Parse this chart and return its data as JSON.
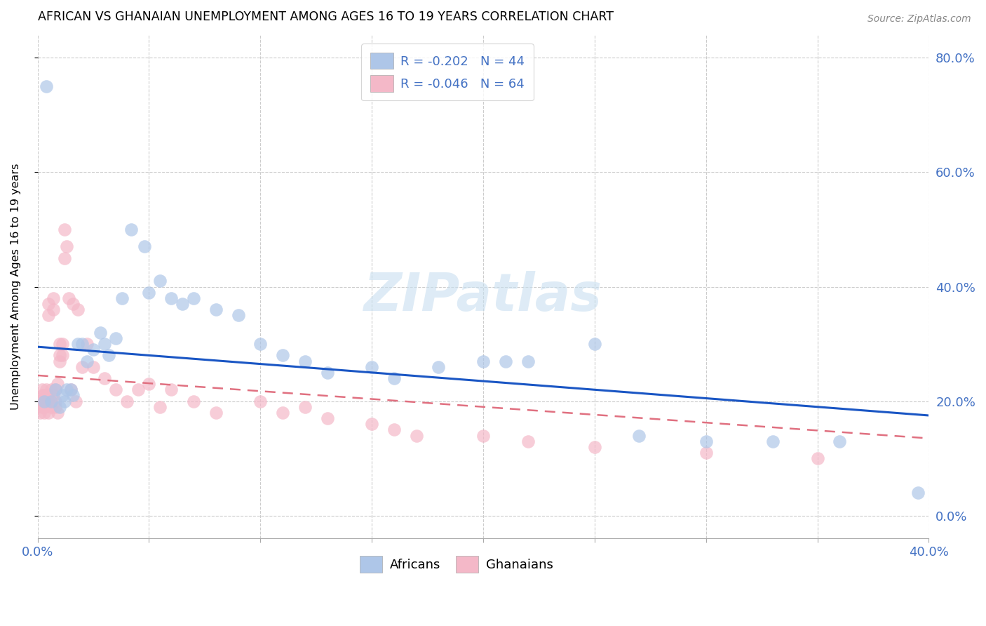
{
  "title": "AFRICAN VS GHANAIAN UNEMPLOYMENT AMONG AGES 16 TO 19 YEARS CORRELATION CHART",
  "source": "Source: ZipAtlas.com",
  "ylabel": "Unemployment Among Ages 16 to 19 years",
  "xlim": [
    0.0,
    0.4
  ],
  "ylim": [
    -0.04,
    0.84
  ],
  "xticks": [
    0.0,
    0.05,
    0.1,
    0.15,
    0.2,
    0.25,
    0.3,
    0.35,
    0.4
  ],
  "yticks_right": [
    0.0,
    0.2,
    0.4,
    0.6,
    0.8
  ],
  "yticklabels_right": [
    "0.0%",
    "20.0%",
    "40.0%",
    "60.0%",
    "80.0%"
  ],
  "african_color": "#aec6e8",
  "ghanaian_color": "#f4b8c8",
  "african_line_color": "#1a56c4",
  "ghanaian_line_color": "#e07080",
  "legend_r_african": "R = -0.202",
  "legend_n_african": "N = 44",
  "legend_r_ghanaian": "R = -0.046",
  "legend_n_ghanaian": "N = 64",
  "watermark": "ZIPatlas",
  "africans_x": [
    0.003,
    0.004,
    0.006,
    0.008,
    0.01,
    0.011,
    0.012,
    0.013,
    0.015,
    0.016,
    0.018,
    0.02,
    0.022,
    0.025,
    0.028,
    0.03,
    0.032,
    0.035,
    0.038,
    0.042,
    0.048,
    0.05,
    0.055,
    0.06,
    0.065,
    0.07,
    0.08,
    0.09,
    0.1,
    0.11,
    0.12,
    0.13,
    0.15,
    0.16,
    0.18,
    0.2,
    0.21,
    0.22,
    0.25,
    0.27,
    0.3,
    0.33,
    0.36,
    0.395
  ],
  "africans_y": [
    0.2,
    0.75,
    0.2,
    0.22,
    0.19,
    0.21,
    0.2,
    0.22,
    0.22,
    0.21,
    0.3,
    0.3,
    0.27,
    0.29,
    0.32,
    0.3,
    0.28,
    0.31,
    0.38,
    0.5,
    0.47,
    0.39,
    0.41,
    0.38,
    0.37,
    0.38,
    0.36,
    0.35,
    0.3,
    0.28,
    0.27,
    0.25,
    0.26,
    0.24,
    0.26,
    0.27,
    0.27,
    0.27,
    0.3,
    0.14,
    0.13,
    0.13,
    0.13,
    0.04
  ],
  "ghanaians_x": [
    0.001,
    0.001,
    0.002,
    0.002,
    0.002,
    0.003,
    0.003,
    0.003,
    0.003,
    0.004,
    0.004,
    0.004,
    0.005,
    0.005,
    0.005,
    0.005,
    0.006,
    0.006,
    0.006,
    0.007,
    0.007,
    0.007,
    0.008,
    0.008,
    0.008,
    0.009,
    0.009,
    0.01,
    0.01,
    0.01,
    0.011,
    0.011,
    0.012,
    0.012,
    0.013,
    0.014,
    0.015,
    0.016,
    0.017,
    0.018,
    0.02,
    0.022,
    0.025,
    0.03,
    0.035,
    0.04,
    0.045,
    0.05,
    0.055,
    0.06,
    0.07,
    0.08,
    0.1,
    0.11,
    0.12,
    0.13,
    0.15,
    0.16,
    0.17,
    0.2,
    0.22,
    0.25,
    0.3,
    0.35
  ],
  "ghanaians_y": [
    0.2,
    0.18,
    0.21,
    0.19,
    0.22,
    0.2,
    0.18,
    0.21,
    0.19,
    0.2,
    0.21,
    0.22,
    0.35,
    0.37,
    0.2,
    0.18,
    0.22,
    0.2,
    0.19,
    0.21,
    0.38,
    0.36,
    0.2,
    0.22,
    0.19,
    0.23,
    0.18,
    0.28,
    0.3,
    0.27,
    0.3,
    0.28,
    0.5,
    0.45,
    0.47,
    0.38,
    0.22,
    0.37,
    0.2,
    0.36,
    0.26,
    0.3,
    0.26,
    0.24,
    0.22,
    0.2,
    0.22,
    0.23,
    0.19,
    0.22,
    0.2,
    0.18,
    0.2,
    0.18,
    0.19,
    0.17,
    0.16,
    0.15,
    0.14,
    0.14,
    0.13,
    0.12,
    0.11,
    0.1
  ],
  "african_trend_x0": 0.0,
  "african_trend_y0": 0.295,
  "african_trend_x1": 0.4,
  "african_trend_y1": 0.175,
  "ghanaian_trend_x0": 0.0,
  "ghanaian_trend_y0": 0.245,
  "ghanaian_trend_x1": 0.4,
  "ghanaian_trend_y1": 0.135
}
